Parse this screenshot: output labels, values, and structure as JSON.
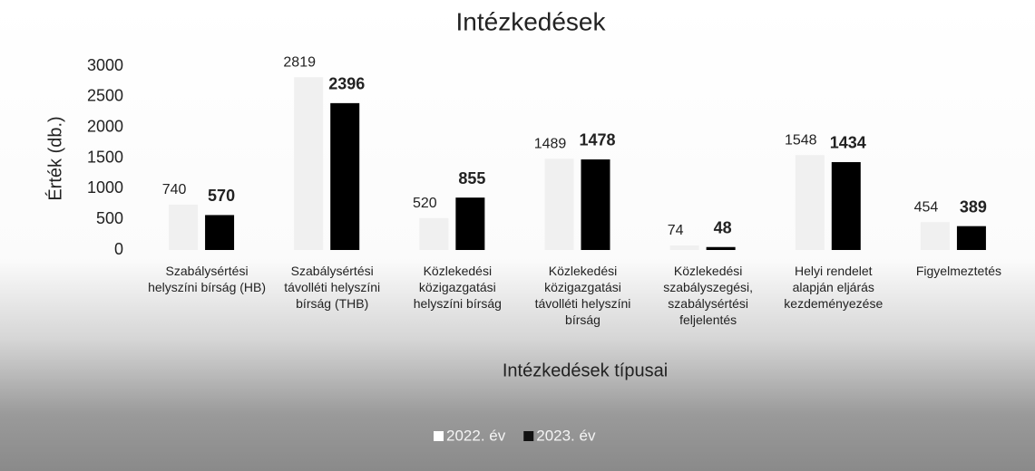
{
  "chart_data": {
    "type": "bar",
    "title": "Intézkedések",
    "y_axis_label": "Érték (db.)",
    "x_axis_label": "Intézkedések típusai",
    "categories": [
      "Szabálysértési helyszíni bírság (HB)",
      "Szabálysértési távolléti helyszíni bírság (THB)",
      "Közlekedési közigazgatási helyszíni bírság",
      "Közlekedési közigazgatási távolléti helyszíni bírság",
      "Közlekedési szabályszegési, szabálysértési feljelentés",
      "Helyi rendelet alapján eljárás kezdeményezése",
      "Figyelmeztetés"
    ],
    "series": [
      {
        "name": "2022. év",
        "color": "#f0f0f0",
        "values": [
          740,
          2819,
          520,
          1489,
          74,
          1548,
          454
        ]
      },
      {
        "name": "2023. év",
        "color": "#000000",
        "values": [
          570,
          2396,
          855,
          1478,
          48,
          1434,
          389
        ]
      }
    ],
    "ylim": [
      0,
      3000
    ],
    "yticks": [
      0,
      500,
      1000,
      1500,
      2000,
      2500,
      3000
    ],
    "legend": "bottom"
  }
}
